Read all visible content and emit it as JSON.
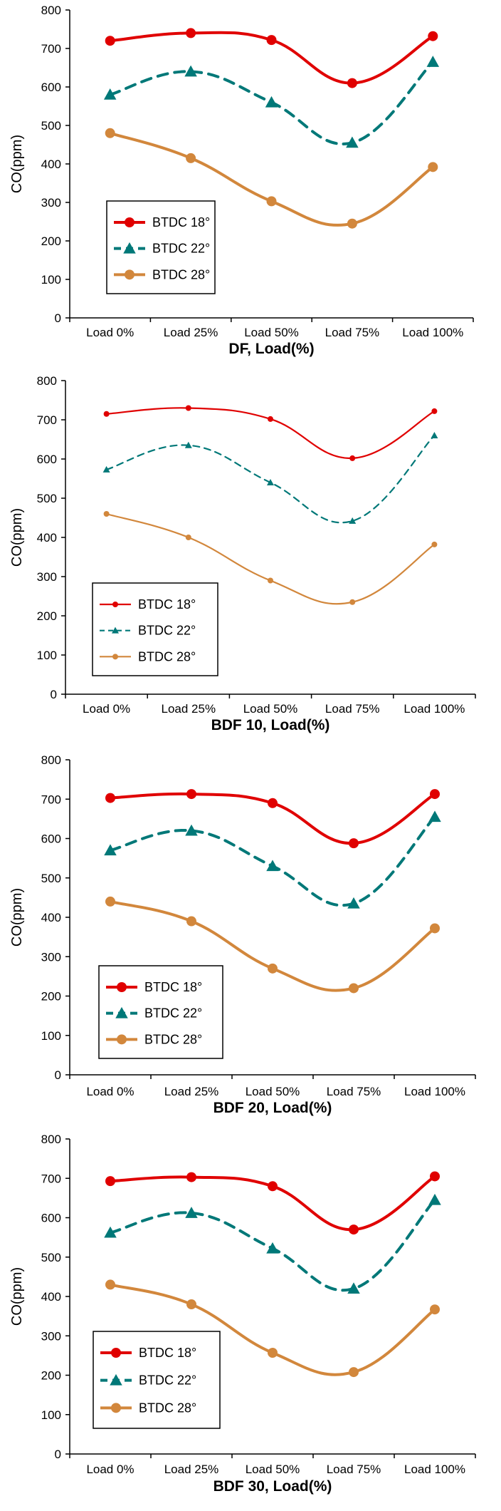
{
  "colors": {
    "btdc18": "#e00000",
    "btdc22": "#007878",
    "btdc28": "#d2873c"
  },
  "chart_data": [
    {
      "type": "line",
      "xlabel": "DF, Load(%)",
      "ylabel": "CO(ppm)",
      "categories": [
        "Load 0%",
        "Load 25%",
        "Load 50%",
        "Load 75%",
        "Load 100%"
      ],
      "ylim": [
        0,
        800
      ],
      "yticks": [
        0,
        100,
        200,
        300,
        400,
        500,
        600,
        700,
        800
      ],
      "grid": false,
      "legend": "lower-left",
      "series": [
        {
          "name": "BTDC 18°",
          "values": [
            720,
            740,
            722,
            610,
            732
          ]
        },
        {
          "name": "BTDC 22°",
          "values": [
            580,
            640,
            560,
            455,
            665
          ]
        },
        {
          "name": "BTDC 28°",
          "values": [
            480,
            415,
            303,
            245,
            392
          ]
        }
      ]
    },
    {
      "type": "line",
      "xlabel": "BDF 10, Load(%)",
      "ylabel": "CO(ppm)",
      "categories": [
        "Load 0%",
        "Load 25%",
        "Load 50%",
        "Load 75%",
        "Load 100%"
      ],
      "ylim": [
        0,
        800
      ],
      "yticks": [
        0,
        100,
        200,
        300,
        400,
        500,
        600,
        700,
        800
      ],
      "grid": false,
      "legend": "lower-left",
      "series": [
        {
          "name": "BTDC 18°",
          "values": [
            715,
            730,
            702,
            602,
            722
          ]
        },
        {
          "name": "BTDC 22°",
          "values": [
            573,
            635,
            540,
            442,
            660
          ]
        },
        {
          "name": "BTDC 28°",
          "values": [
            460,
            400,
            290,
            235,
            382
          ]
        }
      ]
    },
    {
      "type": "line",
      "xlabel": "BDF 20, Load(%)",
      "ylabel": "CO(ppm)",
      "categories": [
        "Load 0%",
        "Load 25%",
        "Load 50%",
        "Load 75%",
        "Load 100%"
      ],
      "ylim": [
        0,
        800
      ],
      "yticks": [
        0,
        100,
        200,
        300,
        400,
        500,
        600,
        700,
        800
      ],
      "grid": false,
      "legend": "lower-left",
      "series": [
        {
          "name": "BTDC 18°",
          "values": [
            703,
            713,
            690,
            588,
            713
          ]
        },
        {
          "name": "BTDC 22°",
          "values": [
            570,
            620,
            530,
            435,
            655
          ]
        },
        {
          "name": "BTDC 28°",
          "values": [
            440,
            390,
            270,
            220,
            372
          ]
        }
      ]
    },
    {
      "type": "line",
      "xlabel": "BDF 30, Load(%)",
      "ylabel": "CO(ppm)",
      "categories": [
        "Load 0%",
        "Load 25%",
        "Load 50%",
        "Load 75%",
        "Load 100%"
      ],
      "ylim": [
        0,
        800
      ],
      "yticks": [
        0,
        100,
        200,
        300,
        400,
        500,
        600,
        700,
        800
      ],
      "grid": false,
      "legend": "lower-left",
      "series": [
        {
          "name": "BTDC 18°",
          "values": [
            693,
            703,
            680,
            570,
            705
          ]
        },
        {
          "name": "BTDC 22°",
          "values": [
            562,
            612,
            522,
            420,
            645
          ]
        },
        {
          "name": "BTDC 28°",
          "values": [
            430,
            380,
            257,
            208,
            367
          ]
        }
      ]
    }
  ]
}
